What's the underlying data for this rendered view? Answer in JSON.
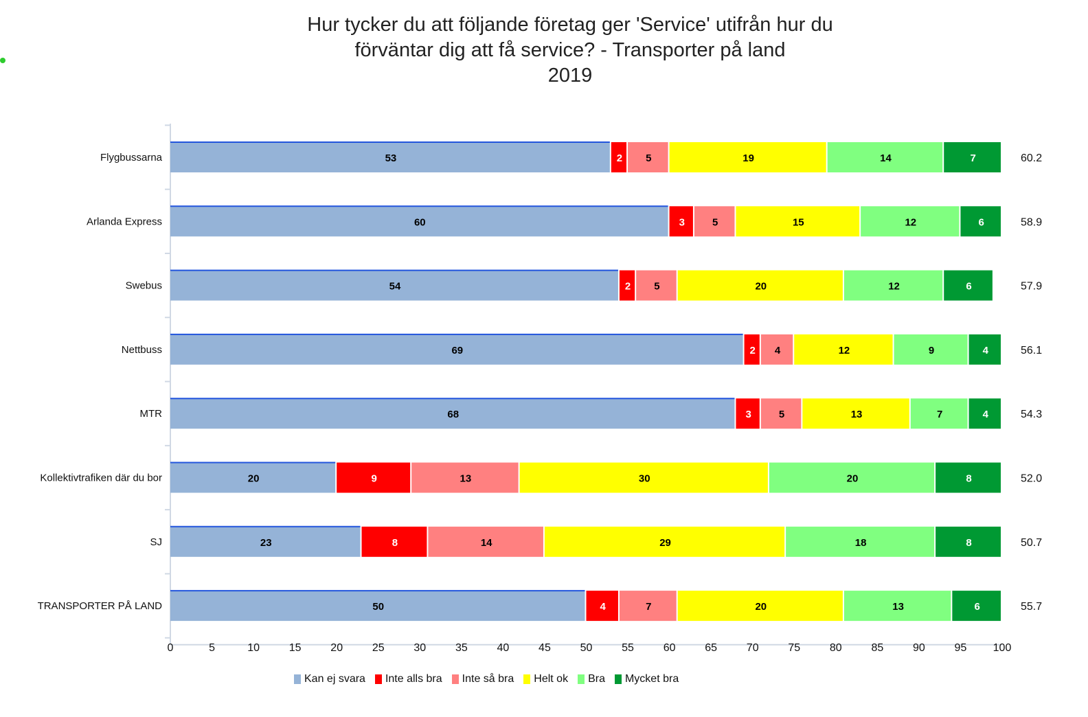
{
  "chart_data": {
    "type": "bar",
    "orientation": "horizontal",
    "stacked": true,
    "title_lines": [
      "Hur tycker du att följande företag ger 'Service' utifrån hur du",
      "förväntar dig att få service? - Transporter på land",
      "2019"
    ],
    "xlabel": "",
    "ylabel": "",
    "xlim": [
      0,
      100
    ],
    "x_ticks": [
      0,
      5,
      10,
      15,
      20,
      25,
      30,
      35,
      40,
      45,
      50,
      55,
      60,
      65,
      70,
      75,
      80,
      85,
      90,
      95,
      100
    ],
    "grid": false,
    "legend_position": "bottom",
    "categories": [
      "Flygbussarna",
      "Arlanda Express",
      "Swebus",
      "Nettbuss",
      "MTR",
      "Kollektivtrafiken där du bor",
      "SJ",
      "TRANSPORTER PÅ LAND"
    ],
    "series": [
      {
        "name": "Kan ej svara",
        "color": "#95b3d7",
        "label_color": "#000000",
        "values": [
          53,
          60,
          54,
          69,
          68,
          20,
          23,
          50
        ]
      },
      {
        "name": "Inte alls bra",
        "color": "#ff0000",
        "label_color": "#ffffff",
        "values": [
          2,
          3,
          2,
          2,
          3,
          9,
          8,
          4
        ]
      },
      {
        "name": "Inte så bra",
        "color": "#ff8080",
        "label_color": "#000000",
        "values": [
          5,
          5,
          5,
          4,
          5,
          13,
          14,
          7
        ]
      },
      {
        "name": "Helt ok",
        "color": "#ffff00",
        "label_color": "#000000",
        "values": [
          19,
          15,
          20,
          12,
          13,
          30,
          29,
          20
        ]
      },
      {
        "name": "Bra",
        "color": "#80ff80",
        "label_color": "#000000",
        "values": [
          14,
          12,
          12,
          9,
          7,
          20,
          18,
          13
        ]
      },
      {
        "name": "Mycket bra",
        "color": "#009933",
        "label_color": "#ffffff",
        "values": [
          7,
          6,
          6,
          4,
          4,
          8,
          8,
          6
        ]
      }
    ],
    "scores": [
      "60.2",
      "58.9",
      "57.9",
      "56.1",
      "54.3",
      "52.0",
      "50.7",
      "55.7"
    ]
  }
}
